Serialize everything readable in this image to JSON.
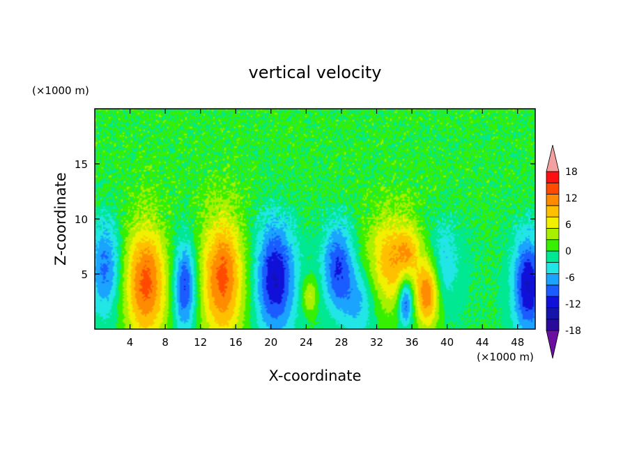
{
  "chart_data": {
    "type": "heatmap",
    "title": "vertical velocity",
    "xlabel": "X-coordinate",
    "ylabel": "Z-coordinate",
    "x_units": "(×1000 m)",
    "y_units": "(×1000 m)",
    "xlim": [
      0,
      50
    ],
    "ylim": [
      0,
      20
    ],
    "x_ticks": [
      4,
      8,
      12,
      16,
      20,
      24,
      28,
      32,
      36,
      40,
      44,
      48
    ],
    "y_ticks": [
      5,
      10,
      15
    ],
    "colorbar": {
      "levels": [
        -21,
        -18,
        -15,
        -12,
        -9,
        -6,
        -3,
        0,
        3,
        6,
        9,
        12,
        15,
        18,
        21
      ],
      "labels": [
        18,
        12,
        6,
        0,
        -6,
        -12,
        -18
      ],
      "colors": [
        "#6a0fa0",
        "#2a0a9a",
        "#1414a8",
        "#1010d8",
        "#1a5cff",
        "#1aa3ff",
        "#22e6e6",
        "#00e892",
        "#36f000",
        "#a8f000",
        "#f0f000",
        "#ffc000",
        "#ff8c00",
        "#ff4a00",
        "#ff1010",
        "#f2a0a0"
      ],
      "extend": "both"
    },
    "features": [
      {
        "x": 1.2,
        "z": 5.5,
        "sx": 1.2,
        "sz": 3.0,
        "value": -10
      },
      {
        "x": 5.8,
        "z": 4.2,
        "sx": 1.7,
        "sz": 3.8,
        "value": 16
      },
      {
        "x": 10.2,
        "z": 3.8,
        "sx": 0.9,
        "sz": 2.8,
        "value": -13
      },
      {
        "x": 14.5,
        "z": 4.6,
        "sx": 1.7,
        "sz": 4.0,
        "value": 16
      },
      {
        "x": 20.5,
        "z": 4.6,
        "sx": 1.6,
        "sz": 3.6,
        "value": -15
      },
      {
        "x": 24.4,
        "z": 3.0,
        "sx": 0.6,
        "sz": 1.1,
        "value": 7
      },
      {
        "x": 27.6,
        "z": 5.6,
        "sx": 1.2,
        "sz": 2.8,
        "value": -12
      },
      {
        "x": 30.0,
        "z": 2.6,
        "sx": 1.3,
        "sz": 2.4,
        "value": -7
      },
      {
        "x": 34.0,
        "z": 6.2,
        "sx": 2.2,
        "sz": 3.0,
        "value": 12
      },
      {
        "x": 35.6,
        "z": 7.2,
        "sx": 0.7,
        "sz": 1.2,
        "value": 4
      },
      {
        "x": 35.3,
        "z": 2.5,
        "sx": 0.6,
        "sz": 1.6,
        "value": -14
      },
      {
        "x": 37.8,
        "z": 3.2,
        "sx": 0.9,
        "sz": 2.2,
        "value": 14
      },
      {
        "x": 39.5,
        "z": 6.0,
        "sx": 1.4,
        "sz": 2.6,
        "value": -6
      },
      {
        "x": 49.2,
        "z": 3.9,
        "sx": 1.2,
        "sz": 3.2,
        "value": -15
      }
    ],
    "grid": false
  }
}
